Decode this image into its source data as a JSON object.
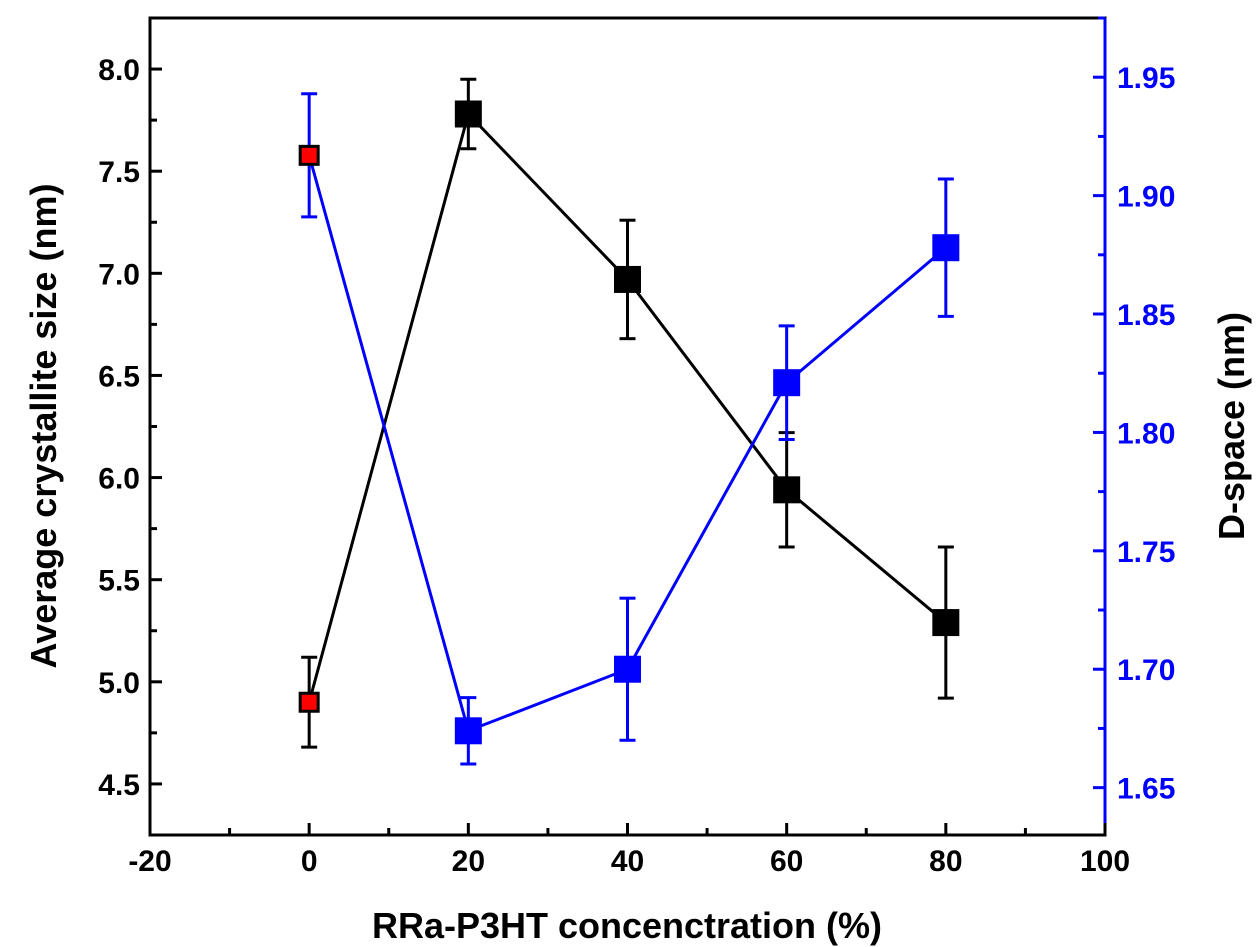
{
  "chart_data": {
    "type": "line",
    "x": [
      0,
      20,
      40,
      60,
      80
    ],
    "xlabel": "RRa-P3HT concenctration (%)",
    "xlim": [
      -20,
      100
    ],
    "xticks": [
      -20,
      0,
      20,
      40,
      60,
      80,
      100
    ],
    "xtick_labels": [
      "-20",
      "0",
      "20",
      "40",
      "60",
      "80",
      "100"
    ],
    "left_axis": {
      "label": "Average crystallite size (nm)",
      "ylim": [
        4.25,
        8.25
      ],
      "ticks": [
        4.5,
        5.0,
        5.5,
        6.0,
        6.5,
        7.0,
        7.5,
        8.0
      ],
      "tick_labels": [
        "4.5",
        "5.0",
        "5.5",
        "6.0",
        "6.5",
        "7.0",
        "7.5",
        "8.0"
      ],
      "color": "#000000"
    },
    "right_axis": {
      "label": "D-space (nm)",
      "ylim": [
        1.63,
        1.975
      ],
      "ticks": [
        1.65,
        1.7,
        1.75,
        1.8,
        1.85,
        1.9,
        1.95
      ],
      "tick_labels": [
        "1.65",
        "1.70",
        "1.75",
        "1.80",
        "1.85",
        "1.90",
        "1.95"
      ],
      "color": "#0000ff"
    },
    "series": [
      {
        "name": "Average crystallite size",
        "axis": "left",
        "color": "#000000",
        "marker": "square",
        "values": [
          4.9,
          7.78,
          6.97,
          5.94,
          5.29
        ],
        "errors": [
          0.22,
          0.17,
          0.29,
          0.28,
          0.37
        ],
        "marker_colors": [
          "#ff0000",
          "#000000",
          "#000000",
          "#000000",
          "#000000"
        ]
      },
      {
        "name": "D-space",
        "axis": "right",
        "color": "#0000ff",
        "marker": "square",
        "values": [
          1.917,
          1.674,
          1.7,
          1.821,
          1.878
        ],
        "errors": [
          0.026,
          0.014,
          0.03,
          0.024,
          0.029
        ],
        "marker_colors": [
          "#ff0000",
          "#0000ff",
          "#0000ff",
          "#0000ff",
          "#0000ff"
        ]
      }
    ]
  }
}
